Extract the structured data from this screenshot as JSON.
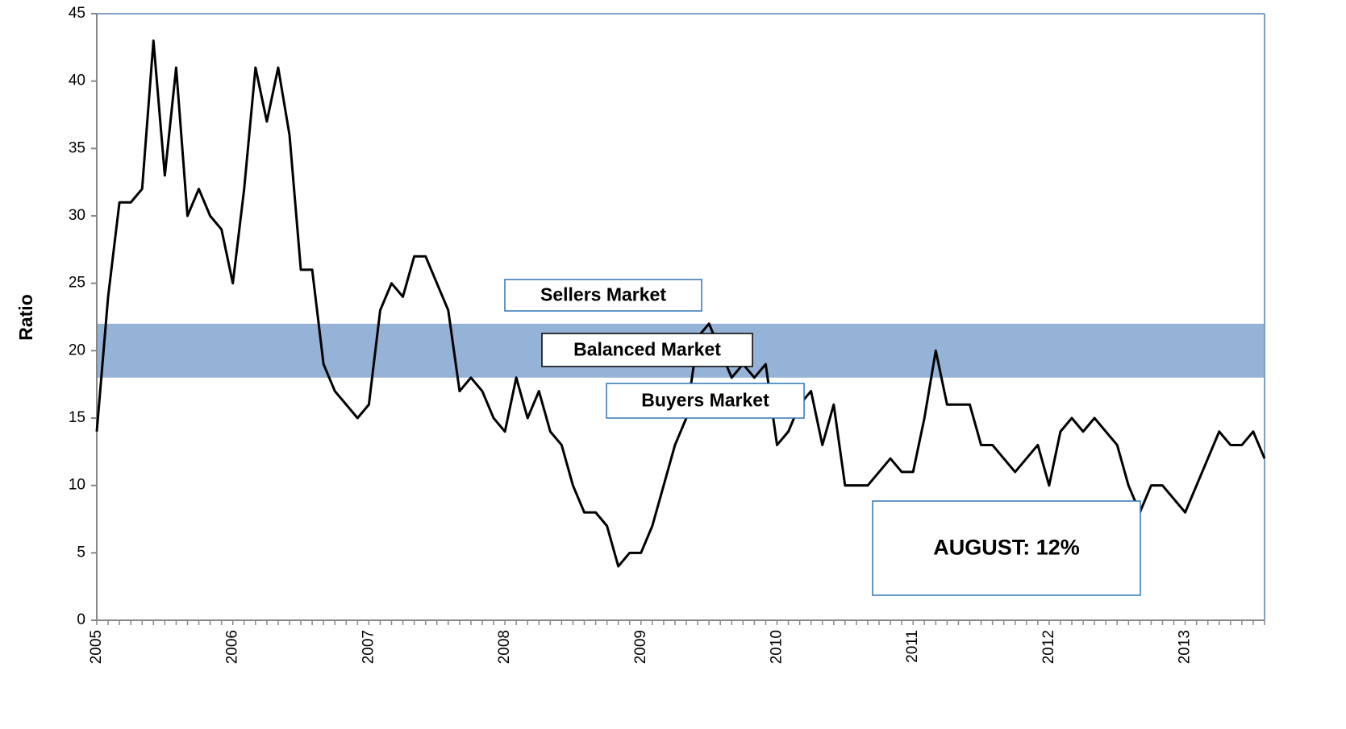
{
  "chart_data": {
    "type": "line",
    "y_label": "Ratio",
    "categories": [
      "2005",
      null,
      null,
      null,
      null,
      null,
      null,
      null,
      null,
      null,
      null,
      null,
      "2006",
      null,
      null,
      null,
      null,
      null,
      null,
      null,
      null,
      null,
      null,
      null,
      "2007",
      null,
      null,
      null,
      null,
      null,
      null,
      null,
      null,
      null,
      null,
      null,
      "2008",
      null,
      null,
      null,
      null,
      null,
      null,
      null,
      null,
      null,
      null,
      null,
      "2009",
      null,
      null,
      null,
      null,
      null,
      null,
      null,
      null,
      null,
      null,
      null,
      "2010",
      null,
      null,
      null,
      null,
      null,
      null,
      null,
      null,
      null,
      null,
      null,
      "2011",
      null,
      null,
      null,
      null,
      null,
      null,
      null,
      null,
      null,
      null,
      null,
      "2012",
      null,
      null,
      null,
      null,
      null,
      null,
      null,
      null,
      null,
      null,
      null,
      "2013",
      null,
      null,
      null,
      null,
      null,
      null,
      null
    ],
    "series": [
      {
        "color": "#000000",
        "values": [
          14,
          24,
          31,
          31,
          32,
          43,
          33,
          41,
          30,
          32,
          30,
          29,
          25,
          32,
          41,
          37,
          41,
          36,
          26,
          26,
          19,
          17,
          16,
          15,
          16,
          23,
          25,
          24,
          27,
          27,
          25,
          23,
          17,
          18,
          17,
          15,
          14,
          18,
          15,
          17,
          14,
          13,
          10,
          8,
          8,
          7,
          4,
          5,
          5,
          7,
          10,
          13,
          15,
          21,
          22,
          20,
          18,
          19,
          18,
          19,
          13,
          14,
          16,
          17,
          13,
          16,
          10,
          10,
          10,
          11,
          12,
          11,
          11,
          15,
          20,
          16,
          16,
          16,
          13,
          13,
          12,
          11,
          12,
          13,
          10,
          14,
          15,
          14,
          15,
          14,
          13,
          10,
          8,
          10,
          10,
          9,
          8,
          10,
          12,
          14,
          13,
          13,
          14,
          12
        ]
      }
    ],
    "balanced_band": {
      "range": [
        18,
        22
      ],
      "color": "#95b3d7"
    },
    "annotations": [
      "Sellers Market",
      "Balanced Market",
      "Buyers Market",
      "AUGUST: 12%"
    ],
    "ylim": [
      0,
      45
    ],
    "yticks": [
      0,
      5,
      10,
      15,
      20,
      25,
      30,
      35,
      40,
      45
    ]
  }
}
